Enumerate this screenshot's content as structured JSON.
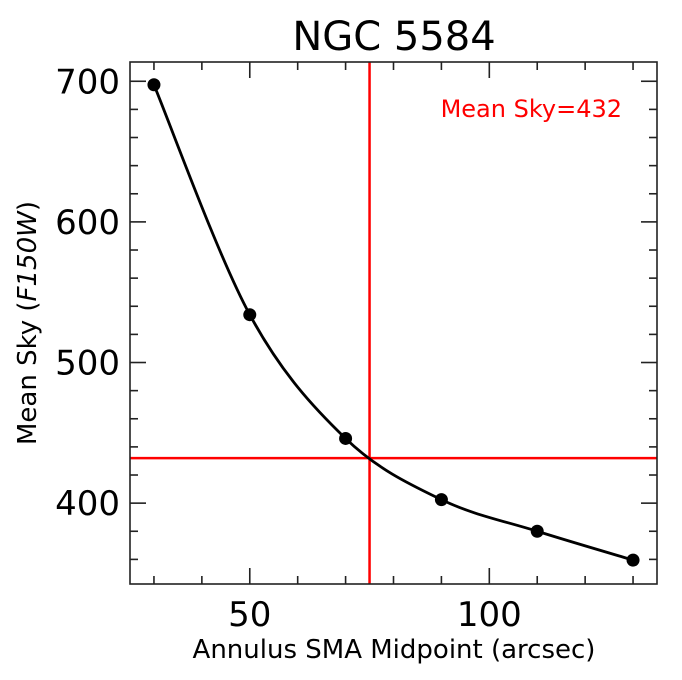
{
  "chart_data": {
    "type": "line",
    "title": "NGC 5584",
    "xlabel": "Annulus SMA Midpoint (arcsec)",
    "ylabel_prefix": "Mean Sky (",
    "ylabel_italic": "F150W",
    "ylabel_suffix": ")",
    "xlim": [
      25,
      135
    ],
    "ylim": [
      342.5,
      713.7
    ],
    "x_major_ticks": [
      50,
      100
    ],
    "x_minor_step": 10,
    "y_major_ticks": [
      400,
      500,
      600,
      700
    ],
    "y_minor_step": 20,
    "tick_labels_x": [
      "50",
      "100"
    ],
    "tick_labels_y": [
      "400",
      "500",
      "600",
      "700"
    ],
    "grid": false,
    "x": [
      30,
      50,
      70,
      90,
      110,
      130
    ],
    "y": [
      697.5,
      534,
      446,
      402.5,
      380,
      359.5
    ],
    "marker": "circle",
    "line_color": "#000000",
    "reference_lines": {
      "vertical_x": 75,
      "horizontal_y": 432,
      "color": "#ff0000"
    },
    "annotation": {
      "text": "Mean Sky=432",
      "color": "#ff0000",
      "placement": "top-right"
    }
  }
}
